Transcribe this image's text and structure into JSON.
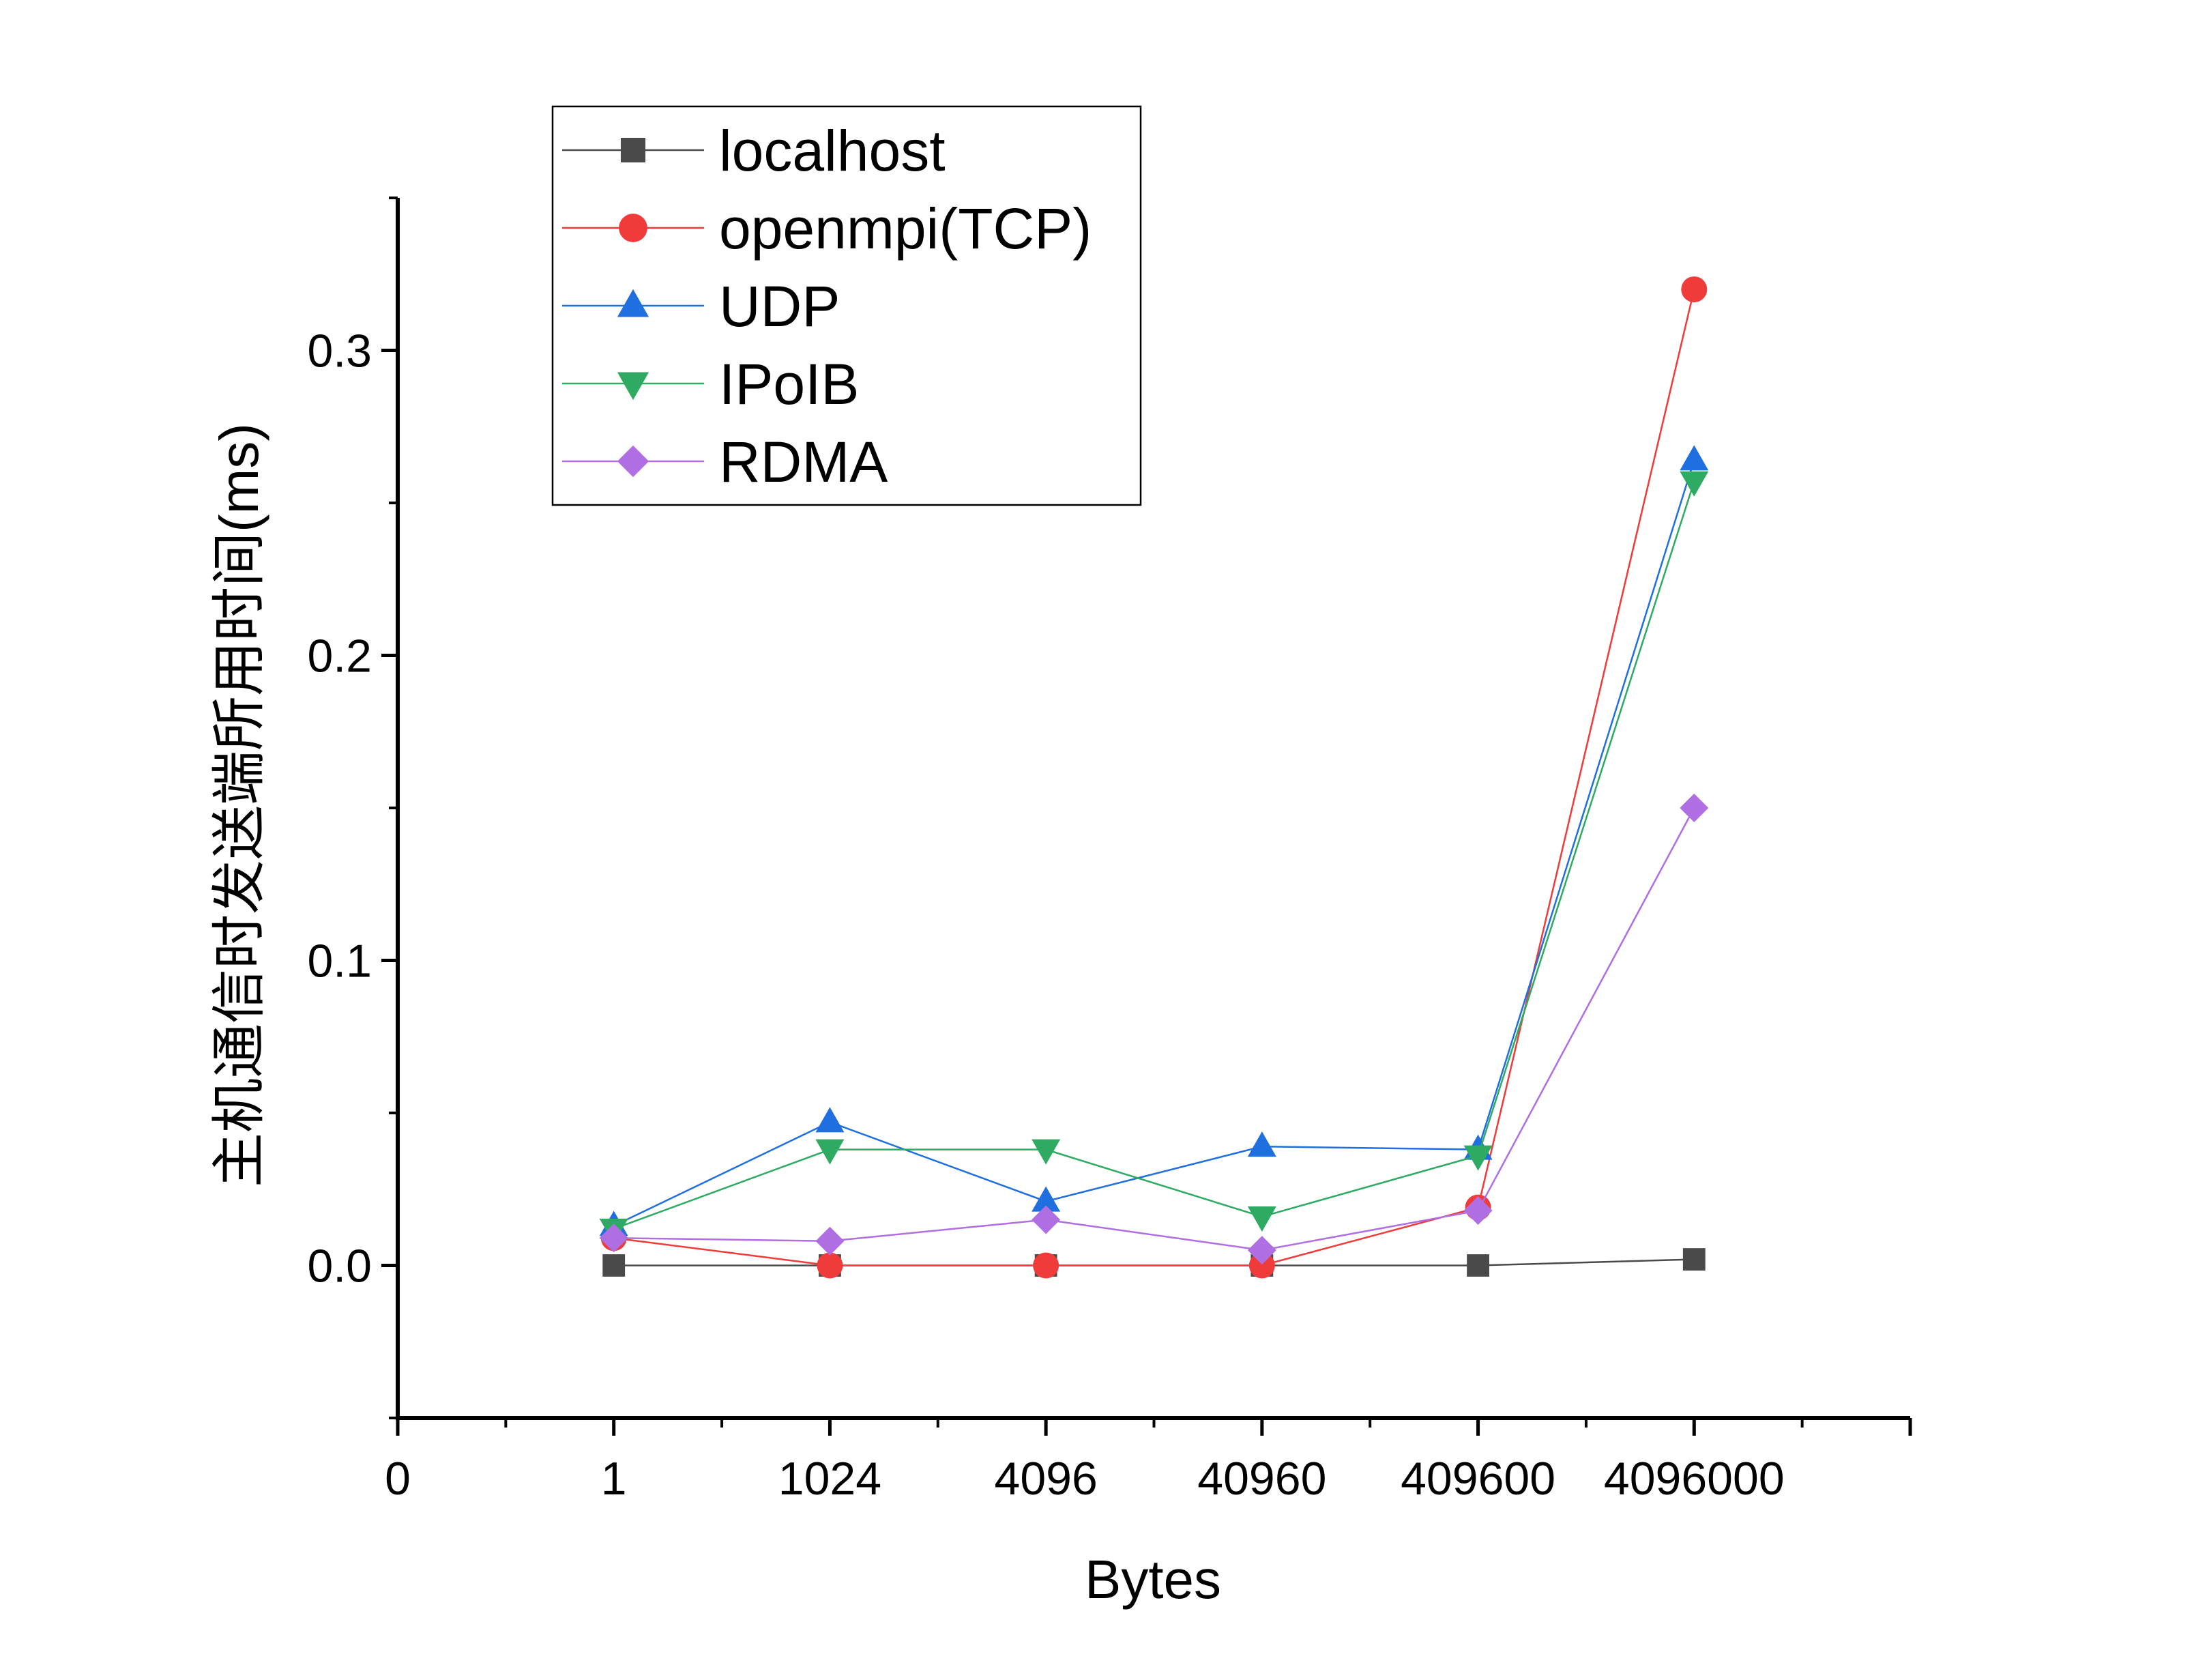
{
  "chart_data": {
    "type": "line",
    "title": "",
    "xlabel": "Bytes",
    "ylabel": "主机通信时发送端所用时间(ms)",
    "x_ticks": [
      "0",
      "1",
      "1024",
      "4096",
      "40960",
      "409600",
      "4096000"
    ],
    "categories": [
      "1",
      "1024",
      "4096",
      "40960",
      "409600",
      "4096000"
    ],
    "x_range": [
      0,
      7
    ],
    "ylim": [
      -0.05,
      0.35
    ],
    "y_ticks": [
      "0.0",
      "0.1",
      "0.2",
      "0.3"
    ],
    "y_tick_values": [
      0.0,
      0.1,
      0.2,
      0.3
    ],
    "grid": false,
    "legend_position": "top-left",
    "series": [
      {
        "name": "localhost",
        "color": "#4a4a4a",
        "marker": "square",
        "values": [
          0.0,
          0.0,
          0.0,
          0.0,
          0.0,
          0.002
        ]
      },
      {
        "name": "openmpi(TCP)",
        "color": "#f03b3b",
        "marker": "circle",
        "values": [
          0.009,
          0.0,
          0.0,
          0.0,
          0.019,
          0.32
        ]
      },
      {
        "name": "UDP",
        "color": "#1f6fe0",
        "marker": "triangle-up",
        "values": [
          0.013,
          0.047,
          0.021,
          0.039,
          0.038,
          0.264
        ]
      },
      {
        "name": "IPoIB",
        "color": "#2eaa63",
        "marker": "triangle-down",
        "values": [
          0.012,
          0.038,
          0.038,
          0.016,
          0.036,
          0.257
        ]
      },
      {
        "name": "RDMA",
        "color": "#b06ee3",
        "marker": "diamond",
        "values": [
          0.009,
          0.008,
          0.015,
          0.005,
          0.018,
          0.15
        ]
      }
    ]
  }
}
